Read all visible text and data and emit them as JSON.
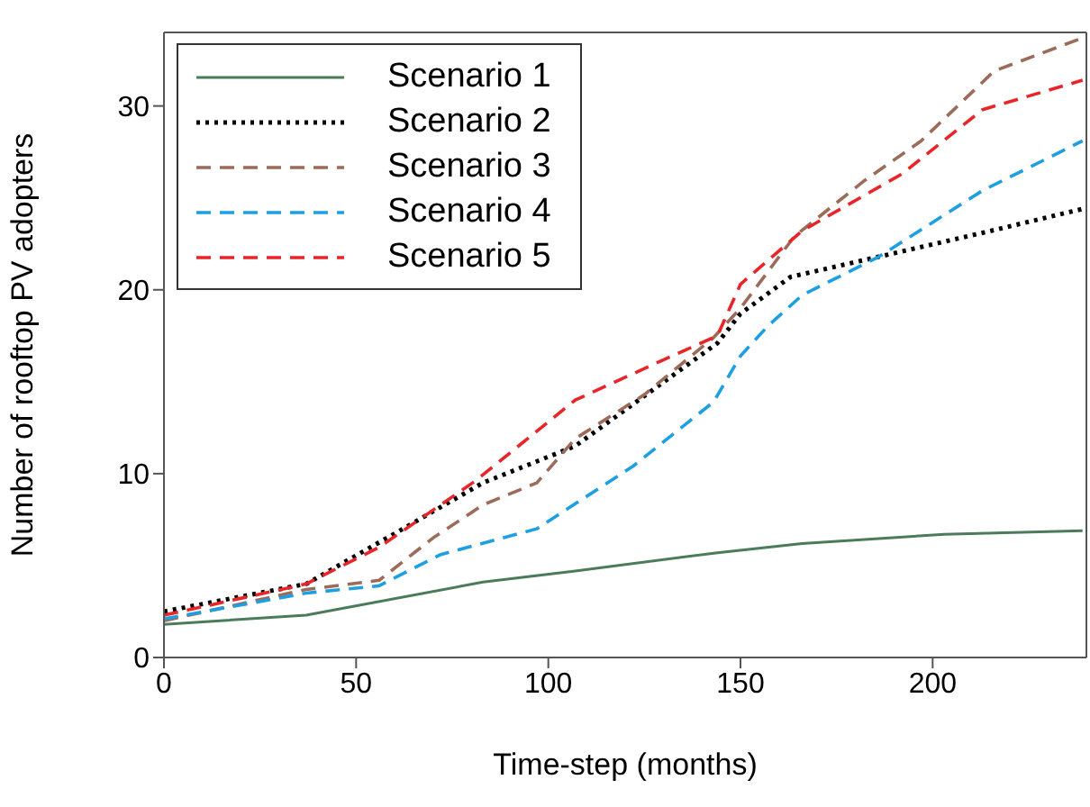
{
  "chart_data": {
    "type": "line",
    "xlabel": "Time-step (months)",
    "ylabel": "Number of rooftop PV adopters",
    "xlim": [
      0,
      240
    ],
    "xticks": [
      0,
      50,
      100,
      150,
      200
    ],
    "ylim": [
      0,
      34
    ],
    "yticks": [
      0,
      10,
      20,
      30
    ],
    "grid": false,
    "legend": "top left",
    "marker": "none",
    "series": [
      {
        "name": "Scenario 1",
        "color": "#4a7c59",
        "line_style": "solid",
        "x": [
          0,
          37,
          83,
          107,
          144,
          166,
          203,
          239
        ],
        "values": [
          1.8,
          2.3,
          4.1,
          4.7,
          5.7,
          6.2,
          6.7,
          6.9
        ]
      },
      {
        "name": "Scenario 2",
        "color": "#000000",
        "line_style": "dotted",
        "x": [
          0,
          37,
          58,
          83,
          107,
          144,
          150,
          163,
          186,
          213,
          239
        ],
        "values": [
          2.5,
          4.0,
          6.5,
          9.5,
          11.5,
          17.1,
          18.7,
          20.7,
          21.8,
          23.1,
          24.4
        ]
      },
      {
        "name": "Scenario 3",
        "color": "#9c6b5a",
        "line_style": "dashed",
        "x": [
          0,
          37,
          56,
          70,
          83,
          97,
          107,
          125,
          143,
          150,
          164,
          182,
          197,
          216,
          239
        ],
        "values": [
          2.0,
          3.7,
          4.2,
          6.5,
          8.3,
          9.5,
          11.9,
          14.3,
          17.4,
          19.0,
          22.9,
          25.9,
          28.1,
          31.9,
          33.7
        ]
      },
      {
        "name": "Scenario 4",
        "color": "#1ea0e0",
        "line_style": "dashed",
        "x": [
          0,
          37,
          56,
          72,
          97,
          122,
          143,
          150,
          157,
          166,
          186,
          213,
          239
        ],
        "values": [
          2.1,
          3.5,
          3.9,
          5.6,
          7.0,
          10.4,
          13.9,
          16.4,
          18.0,
          19.7,
          21.8,
          25.4,
          28.1
        ]
      },
      {
        "name": "Scenario 5",
        "color": "#e8262a",
        "line_style": "dashed",
        "x": [
          0,
          37,
          56,
          81,
          107,
          129,
          144,
          150,
          166,
          192,
          213,
          239
        ],
        "values": [
          2.3,
          4.0,
          6.0,
          9.6,
          14.0,
          16.1,
          17.5,
          20.3,
          23.2,
          26.3,
          29.8,
          31.4
        ]
      }
    ]
  }
}
